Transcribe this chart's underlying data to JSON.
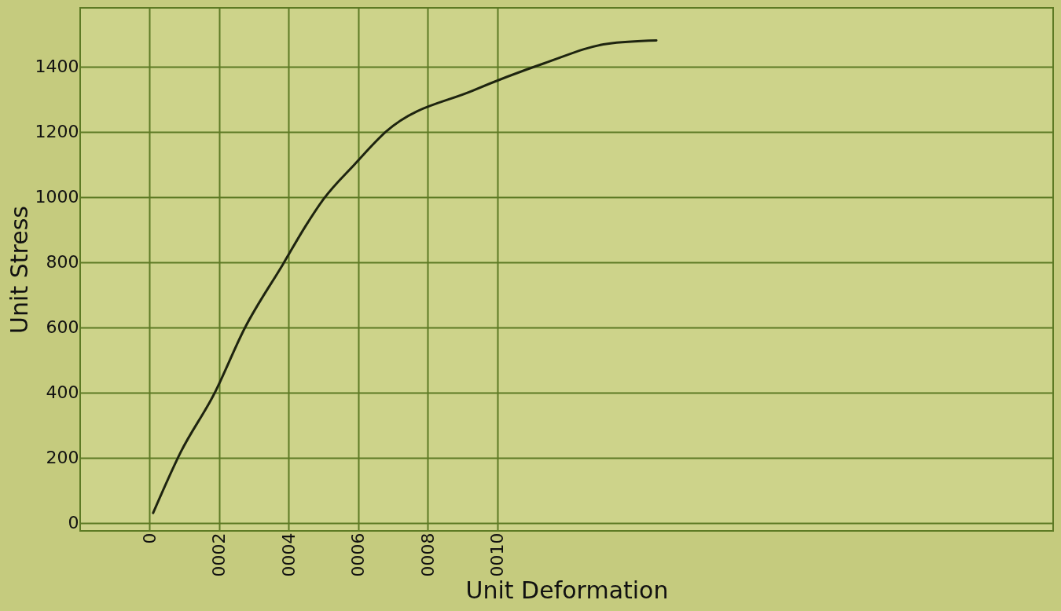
{
  "chart_data": {
    "type": "line",
    "xlabel": "Unit Deformation",
    "ylabel": "Unit Stress",
    "x": [
      0.1,
      0.9,
      1.86,
      2.74,
      3.84,
      4.49,
      5.01,
      5.9,
      6.8,
      9.3,
      11.36,
      13.18,
      14.58
    ],
    "series": [
      {
        "color": "#1e2410",
        "values": [
          30,
          218,
          396,
          598,
          794,
          911,
          994,
          1100,
          1200,
          1326,
          1410,
          1470,
          1480
        ]
      }
    ],
    "xlim": [
      -2,
      26
    ],
    "ylim": [
      -25,
      1580
    ],
    "xticks": [
      0,
      {
        "value": 2,
        "label": "0002"
      },
      {
        "value": 4,
        "label": "0004"
      },
      {
        "value": 6,
        "label": "0006"
      },
      {
        "value": 8,
        "label": "0008"
      },
      {
        "value": 10,
        "label": "0010"
      }
    ],
    "yticks": [
      0,
      200,
      400,
      600,
      800,
      1000,
      1200,
      1400
    ],
    "grid": true,
    "line_style": "solid",
    "marker": "none"
  }
}
